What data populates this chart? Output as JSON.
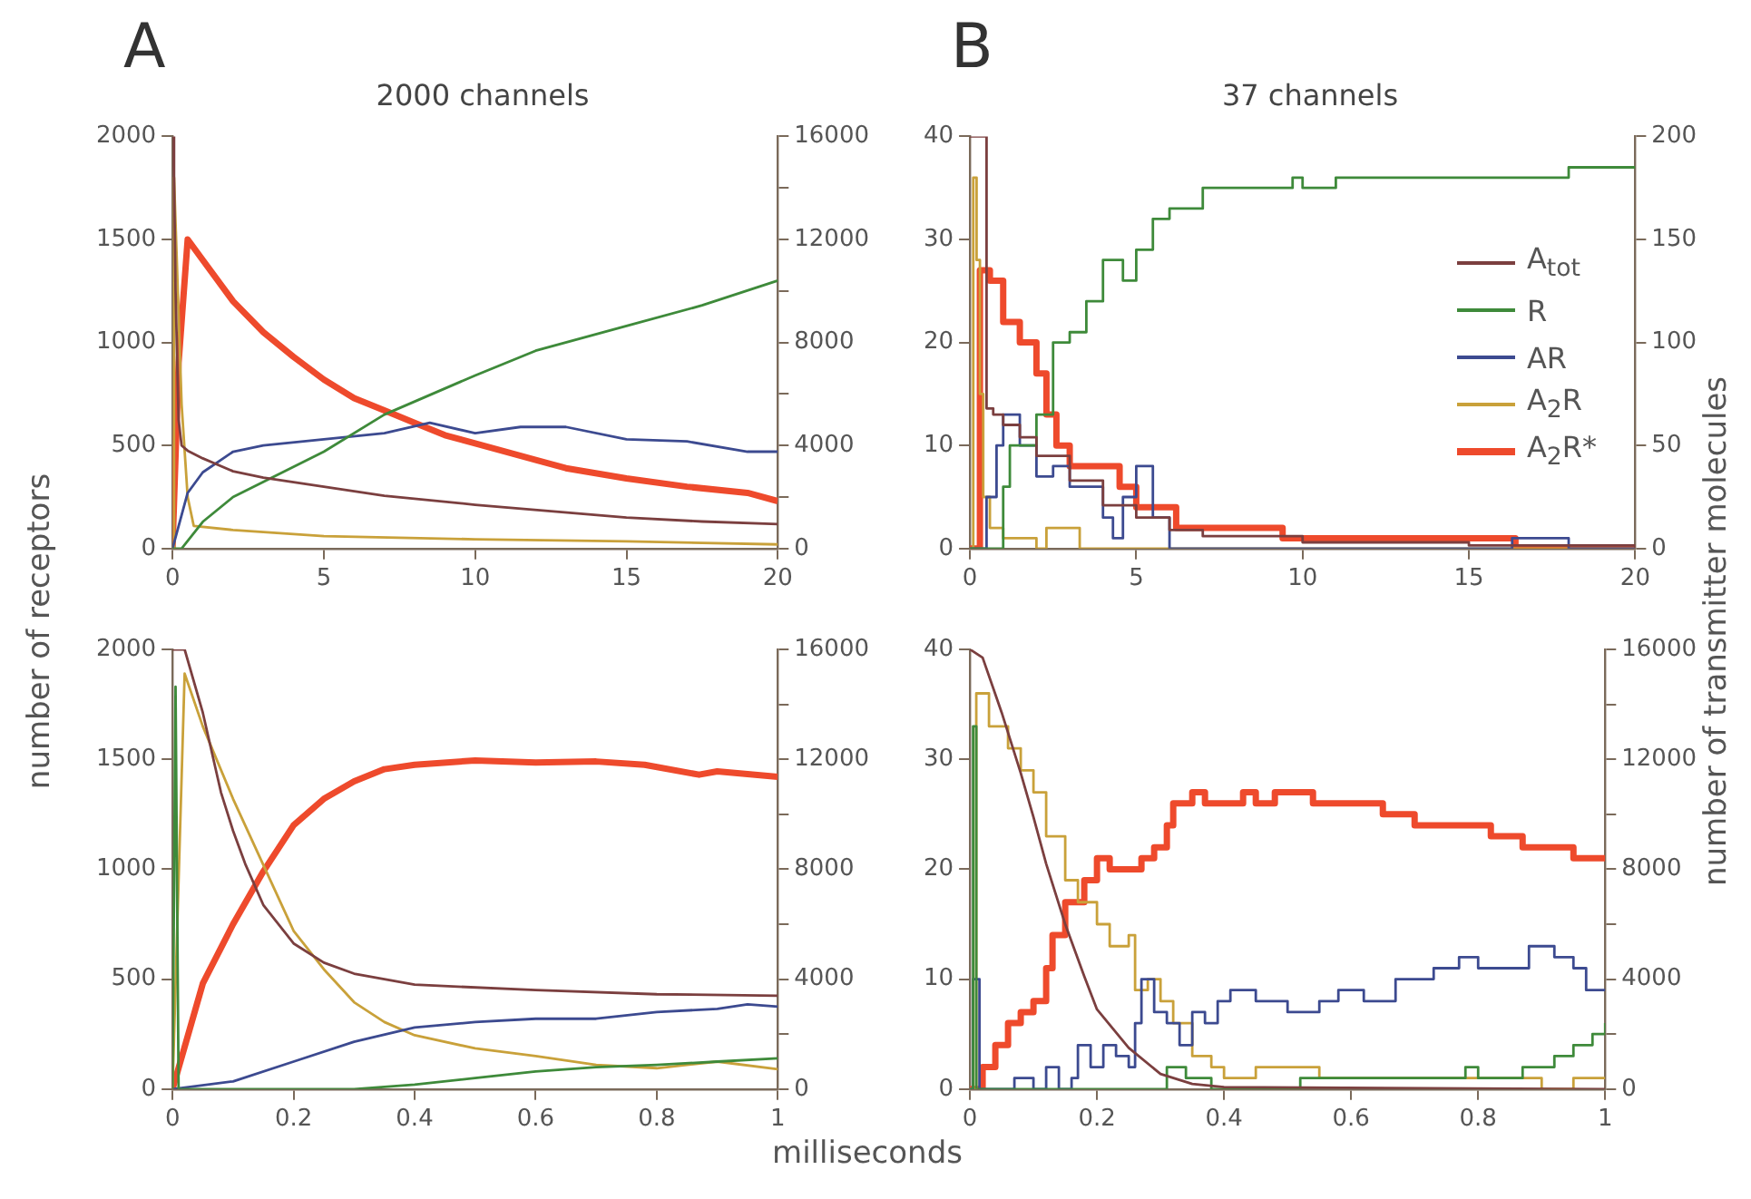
{
  "chart_data": [
    {
      "type": "line",
      "title": "2000 channels",
      "annotations": [
        "A"
      ],
      "ylabel": "number of receptors",
      "xlim": [
        0,
        20
      ],
      "xticks": [
        0,
        5,
        10,
        15,
        20
      ],
      "ylim": [
        0,
        2000
      ],
      "yticks": [
        0,
        500,
        1000,
        1500,
        2000
      ],
      "y2lim": [
        0,
        16000
      ],
      "y2ticks": [
        0,
        {
          "value": 2000,
          "label": null
        },
        4000,
        {
          "value": 6000,
          "label": null
        },
        8000,
        {
          "value": 10000,
          "label": null
        },
        12000,
        {
          "value": 14000,
          "label": null
        },
        16000
      ],
      "series": [
        {
          "color": "#7b3f3f",
          "axis": "y2",
          "x": [
            0,
            0.05,
            0.1,
            0.2,
            0.3,
            0.5,
            1,
            2,
            3,
            5,
            7,
            10,
            12.5,
            15,
            17.5,
            20
          ],
          "values": [
            16000,
            14500,
            10000,
            5000,
            4000,
            3800,
            3500,
            3000,
            2750,
            2400,
            2050,
            1700,
            1450,
            1200,
            1050,
            950
          ]
        },
        {
          "color": "#3e8a3a",
          "x": [
            0,
            0.3,
            1,
            2,
            5,
            7,
            10,
            12,
            15,
            17.5,
            20
          ],
          "values": [
            0,
            0,
            130,
            250,
            470,
            650,
            840,
            960,
            1080,
            1180,
            1300
          ]
        },
        {
          "color": "#3c4a90",
          "x": [
            0,
            0.5,
            1,
            2,
            3,
            5,
            7,
            8.5,
            10,
            11.5,
            13,
            15,
            17,
            19,
            20
          ],
          "values": [
            0,
            270,
            370,
            470,
            500,
            530,
            560,
            610,
            560,
            590,
            590,
            530,
            520,
            470,
            470
          ]
        },
        {
          "color": "#c9a13a",
          "x": [
            0,
            0.05,
            0.3,
            0.5,
            0.7,
            2,
            5,
            10,
            15,
            20
          ],
          "values": [
            0,
            1800,
            700,
            250,
            110,
            90,
            60,
            45,
            35,
            20
          ]
        },
        {
          "color": "#ee4a2c",
          "x": [
            0,
            0.2,
            0.5,
            1,
            2,
            3,
            4,
            5,
            6,
            7,
            8,
            9,
            10,
            12,
            13,
            15,
            17,
            19,
            20
          ],
          "values": [
            0,
            900,
            1500,
            1400,
            1200,
            1050,
            930,
            820,
            730,
            670,
            610,
            550,
            510,
            430,
            390,
            340,
            300,
            270,
            230
          ]
        }
      ]
    },
    {
      "type": "step",
      "title": "37 channels",
      "annotations": [
        "B"
      ],
      "y2label": "number of transmitter molecules",
      "legend": "right",
      "xlim": [
        0,
        20
      ],
      "xticks": [
        0,
        5,
        10,
        15,
        20
      ],
      "ylim": [
        0,
        40
      ],
      "yticks": [
        0,
        10,
        20,
        30,
        40
      ],
      "y2lim": [
        0,
        200
      ],
      "y2ticks": [
        0,
        50,
        100,
        150,
        200
      ],
      "series": [
        {
          "name": "A$_{tot}$",
          "color": "#7b3f3f",
          "axis": "y2",
          "x": [
            0,
            0.3,
            0.5,
            0.7,
            1,
            1.5,
            2,
            3,
            4,
            5,
            6,
            7,
            10,
            15,
            20
          ],
          "values": [
            200,
            200,
            68,
            65,
            60,
            54,
            45,
            33,
            21,
            15,
            9,
            6,
            3,
            1.5,
            0.5
          ]
        },
        {
          "name": "R",
          "color": "#3e8a3a",
          "x": [
            0,
            1,
            1.2,
            2,
            2.5,
            3,
            3.5,
            4,
            4.6,
            5,
            5.5,
            6,
            7,
            9.5,
            9.7,
            10,
            11,
            18,
            20
          ],
          "values": [
            0,
            6,
            10,
            13,
            20,
            21,
            24,
            28,
            26,
            29,
            32,
            33,
            35,
            35,
            36,
            35,
            36,
            37,
            37
          ]
        },
        {
          "name": "AR",
          "color": "#3c4a90",
          "x": [
            0,
            0.3,
            0.5,
            0.8,
            1,
            1.5,
            2,
            2.5,
            3,
            3.5,
            4,
            4.3,
            4.6,
            5,
            5.5,
            6,
            16.3,
            18,
            20
          ],
          "values": [
            0,
            0,
            5,
            10,
            13,
            10,
            7,
            8,
            6,
            6,
            3,
            1,
            5,
            8,
            3,
            0,
            1,
            0,
            0
          ]
        },
        {
          "name": "A$_{2}$R",
          "color": "#c9a13a",
          "x": [
            0,
            0.1,
            0.2,
            0.3,
            0.4,
            0.6,
            1,
            2,
            2.3,
            3,
            3.3,
            20
          ],
          "values": [
            0,
            36,
            28,
            15,
            5,
            2,
            1,
            0,
            2,
            2,
            0,
            0
          ]
        },
        {
          "name": "A$_{2}$R*",
          "color": "#ee4a2c",
          "x": [
            0,
            0.1,
            0.3,
            0.6,
            1,
            1.5,
            2,
            2.3,
            2.6,
            3,
            4.5,
            5,
            6.2,
            9.4,
            16.4,
            20
          ],
          "values": [
            0,
            0,
            27,
            26,
            22,
            20,
            17,
            13,
            10,
            8,
            6,
            4,
            2,
            1,
            0,
            0
          ]
        }
      ]
    },
    {
      "type": "line",
      "xlabel": "milliseconds",
      "xlim": [
        0,
        1
      ],
      "xticks": [
        0,
        0.2,
        0.4,
        0.6,
        0.8,
        1
      ],
      "ylim": [
        0,
        2000
      ],
      "yticks": [
        0,
        500,
        1000,
        1500,
        2000
      ],
      "y2lim": [
        0,
        16000
      ],
      "y2ticks": [
        0,
        {
          "value": 2000,
          "label": null
        },
        4000,
        {
          "value": 6000,
          "label": null
        },
        8000,
        {
          "value": 10000,
          "label": null
        },
        12000,
        {
          "value": 14000,
          "label": null
        },
        16000
      ],
      "series": [
        {
          "color": "#7b3f3f",
          "axis": "y2",
          "x": [
            0,
            0.02,
            0.05,
            0.08,
            0.1,
            0.12,
            0.15,
            0.2,
            0.25,
            0.3,
            0.4,
            0.6,
            0.8,
            1
          ],
          "values": [
            16000,
            16000,
            13700,
            10800,
            9400,
            8200,
            6700,
            5300,
            4600,
            4200,
            3800,
            3600,
            3450,
            3400
          ]
        },
        {
          "color": "#3e8a3a",
          "x": [
            0,
            0.005,
            0.01,
            0.3,
            0.4,
            0.5,
            0.6,
            0.7,
            0.8,
            0.9,
            1
          ],
          "values": [
            0,
            1830,
            0,
            0,
            20,
            50,
            80,
            100,
            110,
            125,
            140
          ]
        },
        {
          "color": "#3c4a90",
          "x": [
            0,
            0.1,
            0.2,
            0.3,
            0.4,
            0.5,
            0.6,
            0.7,
            0.8,
            0.9,
            0.95,
            1
          ],
          "values": [
            0,
            35,
            125,
            215,
            280,
            305,
            320,
            320,
            350,
            365,
            385,
            375
          ]
        },
        {
          "color": "#c9a13a",
          "x": [
            0,
            0.02,
            0.05,
            0.1,
            0.15,
            0.2,
            0.25,
            0.3,
            0.35,
            0.4,
            0.5,
            0.6,
            0.7,
            0.8,
            0.9,
            1
          ],
          "values": [
            0,
            1890,
            1650,
            1320,
            1020,
            720,
            545,
            395,
            305,
            245,
            185,
            150,
            110,
            95,
            125,
            90
          ]
        },
        {
          "color": "#ee4a2c",
          "x": [
            0,
            0.05,
            0.1,
            0.15,
            0.2,
            0.25,
            0.3,
            0.35,
            0.4,
            0.5,
            0.6,
            0.7,
            0.78,
            0.87,
            0.9,
            1
          ],
          "values": [
            0,
            480,
            750,
            990,
            1200,
            1320,
            1400,
            1455,
            1475,
            1495,
            1485,
            1490,
            1475,
            1430,
            1445,
            1420
          ]
        }
      ]
    },
    {
      "type": "step",
      "xlim": [
        0,
        1
      ],
      "xticks": [
        0,
        0.2,
        0.4,
        0.6,
        0.8,
        1
      ],
      "ylim": [
        0,
        40
      ],
      "yticks": [
        0,
        10,
        20,
        30,
        40
      ],
      "y2lim": [
        0,
        16000
      ],
      "y2ticks": [
        0,
        {
          "value": 2000,
          "label": null
        },
        4000,
        {
          "value": 6000,
          "label": null
        },
        8000,
        {
          "value": 10000,
          "label": null
        },
        12000,
        {
          "value": 14000,
          "label": null
        },
        16000
      ],
      "series": [
        {
          "color": "#7b3f3f",
          "axis": "y2",
          "type": "line",
          "x": [
            0,
            0.02,
            0.05,
            0.08,
            0.1,
            0.12,
            0.15,
            0.18,
            0.2,
            0.25,
            0.3,
            0.35,
            0.4,
            1
          ],
          "values": [
            16000,
            15700,
            13700,
            11500,
            9900,
            8200,
            6000,
            4100,
            2900,
            1500,
            550,
            190,
            70,
            0
          ]
        },
        {
          "color": "#3e8a3a",
          "x": [
            0,
            0.005,
            0.01,
            0.31,
            0.34,
            0.38,
            0.52,
            0.78,
            0.8,
            0.87,
            0.92,
            0.95,
            0.98,
            1
          ],
          "values": [
            0,
            33,
            0,
            2,
            1,
            0,
            1,
            2,
            1,
            2,
            3,
            4,
            5,
            6
          ]
        },
        {
          "color": "#3c4a90",
          "x": [
            0,
            0.005,
            0.015,
            0.07,
            0.1,
            0.12,
            0.14,
            0.16,
            0.17,
            0.19,
            0.21,
            0.23,
            0.25,
            0.26,
            0.27,
            0.29,
            0.31,
            0.33,
            0.35,
            0.37,
            0.39,
            0.41,
            0.45,
            0.5,
            0.55,
            0.58,
            0.62,
            0.67,
            0.73,
            0.77,
            0.8,
            0.88,
            0.92,
            0.95,
            0.97,
            1
          ],
          "values": [
            0,
            10,
            0,
            1,
            0,
            2,
            0,
            1,
            4,
            2,
            4,
            3,
            2,
            6,
            10,
            7,
            6,
            4,
            7,
            6,
            8,
            9,
            8,
            7,
            8,
            9,
            8,
            10,
            11,
            12,
            11,
            13,
            12,
            11,
            9,
            9
          ]
        },
        {
          "color": "#c9a13a",
          "x": [
            0,
            0.01,
            0.03,
            0.06,
            0.08,
            0.1,
            0.12,
            0.15,
            0.17,
            0.2,
            0.22,
            0.25,
            0.26,
            0.28,
            0.3,
            0.32,
            0.35,
            0.38,
            0.4,
            0.45,
            0.5,
            0.55,
            0.9,
            0.95,
            1
          ],
          "values": [
            0,
            36,
            33,
            31,
            29,
            27,
            23,
            19,
            17,
            15,
            13,
            14,
            9,
            10,
            8,
            6,
            3,
            2,
            1,
            2,
            2,
            1,
            0,
            1,
            1
          ]
        },
        {
          "color": "#ee4a2c",
          "x": [
            0,
            0.02,
            0.04,
            0.06,
            0.08,
            0.1,
            0.12,
            0.13,
            0.15,
            0.18,
            0.2,
            0.22,
            0.27,
            0.29,
            0.31,
            0.32,
            0.35,
            0.37,
            0.43,
            0.45,
            0.48,
            0.54,
            0.65,
            0.7,
            0.82,
            0.87,
            0.95,
            1
          ],
          "values": [
            0,
            2,
            4,
            6,
            7,
            8,
            11,
            14,
            17,
            19,
            21,
            20,
            21,
            22,
            24,
            26,
            27,
            26,
            27,
            26,
            27,
            26,
            25,
            24,
            23,
            22,
            21,
            21
          ]
        }
      ]
    }
  ]
}
